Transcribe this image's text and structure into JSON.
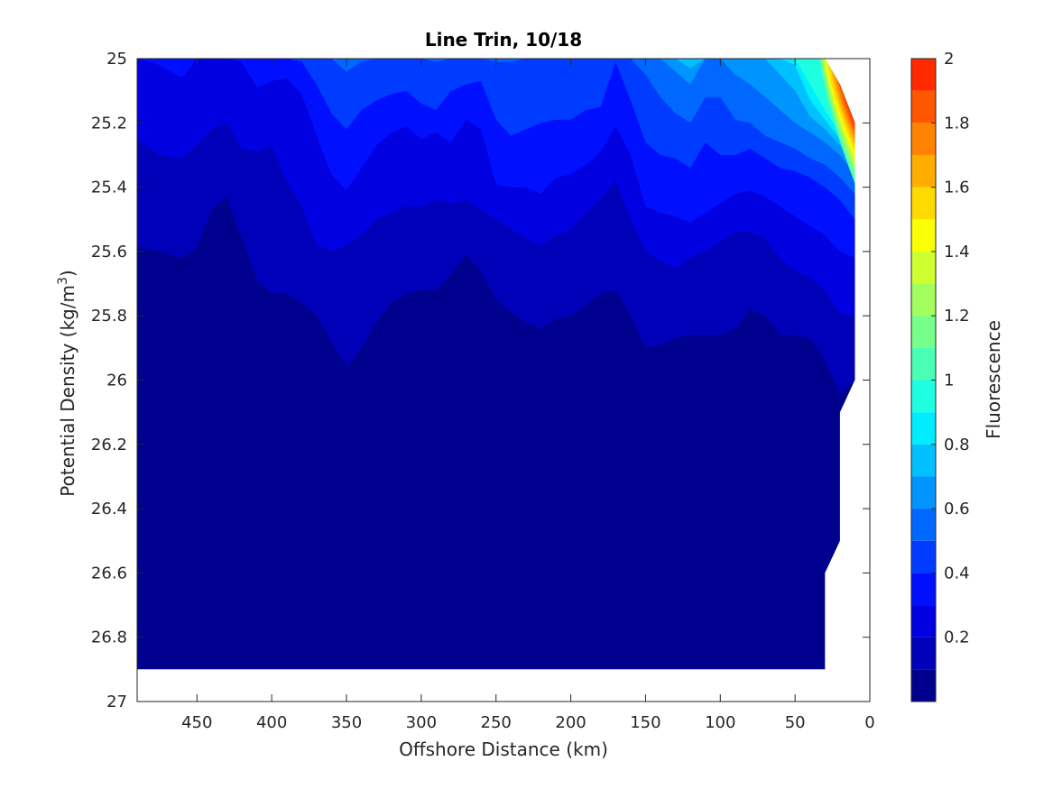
{
  "chart_data": {
    "type": "contour",
    "title": "Line Trin, 10/18",
    "xlabel": "Offshore Distance (km)",
    "ylabel_main": "Potential Density (kg/m",
    "ylabel_sup": "3",
    "ylabel_close": ")",
    "colorbar_label": "Fluorescence",
    "x_reversed": true,
    "y_reversed": true,
    "xlim": [
      0,
      490
    ],
    "ylim": [
      25,
      27
    ],
    "x_ticks": [
      {
        "value": 450,
        "label": "450"
      },
      {
        "value": 400,
        "label": "400"
      },
      {
        "value": 350,
        "label": "350"
      },
      {
        "value": 300,
        "label": "300"
      },
      {
        "value": 250,
        "label": "250"
      },
      {
        "value": 200,
        "label": "200"
      },
      {
        "value": 150,
        "label": "150"
      },
      {
        "value": 100,
        "label": "100"
      },
      {
        "value": 50,
        "label": "50"
      },
      {
        "value": 0,
        "label": "0"
      }
    ],
    "y_ticks": [
      {
        "value": 25,
        "label": "25"
      },
      {
        "value": 25.2,
        "label": "25.2"
      },
      {
        "value": 25.4,
        "label": "25.4"
      },
      {
        "value": 25.6,
        "label": "25.6"
      },
      {
        "value": 25.8,
        "label": "25.8"
      },
      {
        "value": 26,
        "label": "26"
      },
      {
        "value": 26.2,
        "label": "26.2"
      },
      {
        "value": 26.4,
        "label": "26.4"
      },
      {
        "value": 26.6,
        "label": "26.6"
      },
      {
        "value": 26.8,
        "label": "26.8"
      },
      {
        "value": 27,
        "label": "27"
      }
    ],
    "colorbar_range": [
      0,
      2
    ],
    "colorbar_ticks": [
      {
        "value": 0.2,
        "label": "0.2"
      },
      {
        "value": 0.4,
        "label": "0.4"
      },
      {
        "value": 0.6,
        "label": "0.6"
      },
      {
        "value": 0.8,
        "label": "0.8"
      },
      {
        "value": 1,
        "label": "1"
      },
      {
        "value": 1.2,
        "label": "1.2"
      },
      {
        "value": 1.4,
        "label": "1.4"
      },
      {
        "value": 1.6,
        "label": "1.6"
      },
      {
        "value": 1.8,
        "label": "1.8"
      },
      {
        "value": 2,
        "label": "2"
      }
    ],
    "levels": [
      0,
      0.1,
      0.2,
      0.3,
      0.4,
      0.5,
      0.6,
      0.7,
      0.8,
      0.9,
      1.0,
      1.1,
      1.2,
      1.3,
      1.4,
      1.5,
      1.6,
      1.7,
      1.8,
      1.9,
      2.0
    ],
    "level_colors": [
      "#00008F",
      "#0000B8",
      "#0000E1",
      "#0010FF",
      "#003CFF",
      "#0068FF",
      "#0094FF",
      "#00C0FF",
      "#00ECFF",
      "#1EFFE1",
      "#4AFFB5",
      "#76FF89",
      "#A2FF5D",
      "#CEFF31",
      "#FAFF05",
      "#FFDA00",
      "#FFAE00",
      "#FF8200",
      "#FF5600",
      "#FF2A00",
      "#E60000",
      "#B40000"
    ],
    "data_extent": {
      "shelf_boundary": [
        {
          "x": 10,
          "y": 25.2
        },
        {
          "x": 10,
          "y": 26.0
        },
        {
          "x": 20,
          "y": 26.1
        },
        {
          "x": 20,
          "y": 26.5
        },
        {
          "x": 30,
          "y": 26.6
        },
        {
          "x": 30,
          "y": 26.9
        },
        {
          "x": 490,
          "y": 26.9
        }
      ],
      "top_right_corner": [
        {
          "x": 30,
          "y": 25.0
        },
        {
          "x": 20,
          "y": 25.08
        },
        {
          "x": 10,
          "y": 25.2
        }
      ]
    },
    "contour_boundaries": {
      "x": [
        490,
        475,
        460,
        450,
        440,
        430,
        420,
        410,
        400,
        390,
        380,
        370,
        360,
        350,
        340,
        330,
        320,
        310,
        300,
        290,
        280,
        270,
        260,
        250,
        240,
        230,
        220,
        210,
        200,
        190,
        180,
        170,
        160,
        150,
        140,
        130,
        120,
        110,
        100,
        90,
        80,
        70,
        60,
        50,
        40,
        30,
        20,
        10
      ],
      "b_0_1": [
        25.59,
        25.6,
        25.62,
        25.59,
        25.47,
        25.43,
        25.56,
        25.69,
        25.73,
        25.73,
        25.76,
        25.8,
        25.88,
        25.96,
        25.9,
        25.82,
        25.76,
        25.73,
        25.72,
        25.72,
        25.67,
        25.61,
        25.66,
        25.75,
        25.79,
        25.82,
        25.84,
        25.81,
        25.8,
        25.77,
        25.73,
        25.72,
        25.8,
        25.9,
        25.89,
        25.87,
        25.86,
        25.86,
        25.86,
        25.84,
        25.78,
        25.8,
        25.86,
        25.86,
        25.87,
        25.94,
        26.04,
        26.0
      ],
      "b_0_2": [
        25.25,
        25.3,
        25.31,
        25.27,
        25.22,
        25.2,
        25.28,
        25.29,
        25.27,
        25.38,
        25.46,
        25.58,
        25.6,
        25.58,
        25.55,
        25.5,
        25.48,
        25.46,
        25.46,
        25.44,
        25.45,
        25.44,
        25.47,
        25.5,
        25.53,
        25.56,
        25.58,
        25.55,
        25.53,
        25.48,
        25.44,
        25.38,
        25.5,
        25.6,
        25.63,
        25.65,
        25.62,
        25.6,
        25.57,
        25.54,
        25.54,
        25.56,
        25.62,
        25.66,
        25.68,
        25.72,
        25.79,
        25.8
      ],
      "b_0_3": [
        25.0,
        25.02,
        25.06,
        25.0,
        25.0,
        25.0,
        25.01,
        25.09,
        25.07,
        25.06,
        25.11,
        25.24,
        25.36,
        25.41,
        25.34,
        25.27,
        25.23,
        25.21,
        25.25,
        25.23,
        25.26,
        25.19,
        25.22,
        25.39,
        25.4,
        25.4,
        25.42,
        25.37,
        25.36,
        25.33,
        25.29,
        25.21,
        25.3,
        25.46,
        25.48,
        25.49,
        25.51,
        25.48,
        25.45,
        25.42,
        25.41,
        25.43,
        25.46,
        25.49,
        25.52,
        25.55,
        25.6,
        25.62
      ],
      "b_0_4": [
        25.0,
        25.0,
        25.0,
        25.0,
        25.0,
        25.0,
        25.0,
        25.0,
        25.0,
        25.0,
        25.01,
        25.08,
        25.17,
        25.22,
        25.16,
        25.13,
        25.11,
        25.1,
        25.14,
        25.16,
        25.1,
        25.08,
        25.07,
        25.19,
        25.24,
        25.22,
        25.2,
        25.19,
        25.19,
        25.16,
        25.15,
        25.01,
        25.13,
        25.26,
        25.3,
        25.31,
        25.34,
        25.26,
        25.3,
        25.3,
        25.28,
        25.31,
        25.34,
        25.35,
        25.37,
        25.4,
        25.44,
        25.5
      ],
      "b_0_5": [
        25.0,
        25.0,
        25.0,
        25.0,
        25.0,
        25.0,
        25.0,
        25.0,
        25.0,
        25.0,
        25.0,
        25.0,
        25.0,
        25.04,
        25.01,
        25.0,
        25.0,
        25.0,
        25.0,
        25.01,
        25.0,
        25.0,
        25.0,
        25.01,
        25.01,
        25.0,
        25.0,
        25.0,
        25.0,
        25.0,
        25.0,
        25.0,
        25.0,
        25.05,
        25.12,
        25.17,
        25.2,
        25.12,
        25.12,
        25.19,
        25.2,
        25.24,
        25.26,
        25.28,
        25.31,
        25.33,
        25.37,
        25.42
      ],
      "b_0_6": [
        25.0,
        25.0,
        25.0,
        25.0,
        25.0,
        25.0,
        25.0,
        25.0,
        25.0,
        25.0,
        25.0,
        25.0,
        25.0,
        25.0,
        25.0,
        25.0,
        25.0,
        25.0,
        25.0,
        25.0,
        25.0,
        25.0,
        25.0,
        25.0,
        25.0,
        25.0,
        25.0,
        25.0,
        25.0,
        25.0,
        25.0,
        25.0,
        25.0,
        25.0,
        25.0,
        25.04,
        25.08,
        25.0,
        25.0,
        25.05,
        25.08,
        25.12,
        25.16,
        25.2,
        25.23,
        25.26,
        25.3,
        25.36
      ],
      "b_0_7": [
        25.0,
        25.0,
        25.0,
        25.0,
        25.0,
        25.0,
        25.0,
        25.0,
        25.0,
        25.0,
        25.0,
        25.0,
        25.0,
        25.0,
        25.0,
        25.0,
        25.0,
        25.0,
        25.0,
        25.0,
        25.0,
        25.0,
        25.0,
        25.0,
        25.0,
        25.0,
        25.0,
        25.0,
        25.0,
        25.0,
        25.0,
        25.0,
        25.0,
        25.0,
        25.0,
        25.0,
        25.03,
        25.0,
        25.0,
        25.0,
        25.0,
        25.0,
        25.05,
        25.1,
        25.18,
        25.22,
        25.27,
        25.33
      ],
      "b_0_8": [
        25.0,
        25.0,
        25.0,
        25.0,
        25.0,
        25.0,
        25.0,
        25.0,
        25.0,
        25.0,
        25.0,
        25.0,
        25.0,
        25.0,
        25.0,
        25.0,
        25.0,
        25.0,
        25.0,
        25.0,
        25.0,
        25.0,
        25.0,
        25.0,
        25.0,
        25.0,
        25.0,
        25.0,
        25.0,
        25.0,
        25.0,
        25.0,
        25.0,
        25.0,
        25.0,
        25.0,
        25.0,
        25.0,
        25.0,
        25.0,
        25.0,
        25.0,
        25.0,
        25.02,
        25.13,
        25.19,
        25.25,
        25.31
      ],
      "b_0_9": [
        25.0,
        25.0,
        25.0,
        25.0,
        25.0,
        25.0,
        25.0,
        25.0,
        25.0,
        25.0,
        25.0,
        25.0,
        25.0,
        25.0,
        25.0,
        25.0,
        25.0,
        25.0,
        25.0,
        25.0,
        25.0,
        25.0,
        25.0,
        25.0,
        25.0,
        25.0,
        25.0,
        25.0,
        25.0,
        25.0,
        25.0,
        25.0,
        25.0,
        25.0,
        25.0,
        25.0,
        25.0,
        25.0,
        25.0,
        25.0,
        25.0,
        25.0,
        25.0,
        25.0,
        25.08,
        25.16,
        25.23,
        25.29
      ]
    }
  }
}
